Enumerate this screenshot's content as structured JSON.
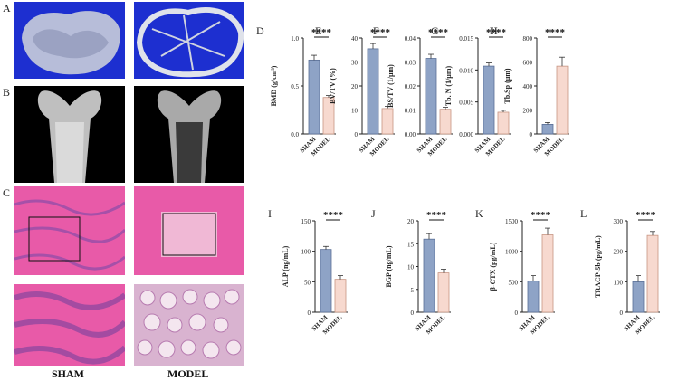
{
  "left_panels": {
    "a": "A",
    "b": "B",
    "c": "C"
  },
  "group_labels": {
    "sham": "SHAM",
    "model": "MODEL"
  },
  "colors": {
    "sham_bar": "#8ea3c6",
    "model_bar": "#f7d9cf",
    "sham_edge": "#5a6f96",
    "model_edge": "#c79583"
  },
  "chart_data": [
    {
      "panel": "D",
      "type": "bar",
      "ylabel": "BMD (g/cm³)",
      "ylim": [
        0,
        1.0
      ],
      "ticks": [
        0.0,
        0.5,
        1.0
      ],
      "tick_labels": [
        "0.0",
        "0.5",
        "1.0"
      ],
      "categories": [
        "SHAM",
        "MODEL"
      ],
      "values": [
        0.77,
        0.38
      ],
      "errors": [
        0.05,
        0.02
      ],
      "sig": "****"
    },
    {
      "panel": "E",
      "type": "bar",
      "ylabel": "BV/TV (%)",
      "ylim": [
        0,
        40
      ],
      "ticks": [
        0,
        10,
        20,
        30,
        40
      ],
      "tick_labels": [
        "0",
        "10",
        "20",
        "30",
        "40"
      ],
      "categories": [
        "SHAM",
        "MODEL"
      ],
      "values": [
        35.5,
        10.6
      ],
      "errors": [
        2.2,
        0.9
      ],
      "sig": "****"
    },
    {
      "panel": "F",
      "type": "bar",
      "ylabel": "BS/TV (1/μm)",
      "ylim": [
        0,
        0.04
      ],
      "ticks": [
        0,
        0.01,
        0.02,
        0.03,
        0.04
      ],
      "tick_labels": [
        "0.00",
        "0.01",
        "0.02",
        "0.03",
        "0.04"
      ],
      "categories": [
        "SHAM",
        "MODEL"
      ],
      "values": [
        0.0315,
        0.0103
      ],
      "errors": [
        0.0017,
        0.0008
      ],
      "sig": "****"
    },
    {
      "panel": "G",
      "type": "bar",
      "ylabel": "Tb. N (1/μm)",
      "ylim": [
        0,
        0.015
      ],
      "ticks": [
        0,
        0.005,
        0.01,
        0.015
      ],
      "tick_labels": [
        "0.000",
        "0.005",
        "0.010",
        "0.015"
      ],
      "categories": [
        "SHAM",
        "MODEL"
      ],
      "values": [
        0.0106,
        0.0034
      ],
      "errors": [
        0.0005,
        0.0003
      ],
      "sig": "****"
    },
    {
      "panel": "H",
      "type": "bar",
      "ylabel": "Tb.Sp (μm)",
      "ylim": [
        0,
        800
      ],
      "ticks": [
        0,
        200,
        400,
        600,
        800
      ],
      "tick_labels": [
        "0",
        "200",
        "400",
        "600",
        "800"
      ],
      "categories": [
        "SHAM",
        "MODEL"
      ],
      "values": [
        80,
        565
      ],
      "errors": [
        15,
        75
      ],
      "sig": "****"
    },
    {
      "panel": "I",
      "type": "bar",
      "ylabel": "ALP (ng/mL)",
      "ylim": [
        0,
        150
      ],
      "ticks": [
        0,
        50,
        100,
        150
      ],
      "tick_labels": [
        "0",
        "50",
        "100",
        "150"
      ],
      "categories": [
        "SHAM",
        "MODEL"
      ],
      "values": [
        103,
        54
      ],
      "errors": [
        5,
        6
      ],
      "sig": "****"
    },
    {
      "panel": "J",
      "type": "bar",
      "ylabel": "BGP (ng/mL)",
      "ylim": [
        0,
        20
      ],
      "ticks": [
        0,
        5,
        10,
        15,
        20
      ],
      "tick_labels": [
        "0",
        "5",
        "10",
        "15",
        "20"
      ],
      "categories": [
        "SHAM",
        "MODEL"
      ],
      "values": [
        16,
        8.6
      ],
      "errors": [
        1.2,
        0.8
      ],
      "sig": "****"
    },
    {
      "panel": "K",
      "type": "bar",
      "ylabel": "β-CTX (pg/mL)",
      "ylim": [
        0,
        1500
      ],
      "ticks": [
        0,
        500,
        1000,
        1500
      ],
      "tick_labels": [
        "0",
        "500",
        "1000",
        "1500"
      ],
      "categories": [
        "SHAM",
        "MODEL"
      ],
      "values": [
        510,
        1270
      ],
      "errors": [
        90,
        110
      ],
      "sig": "****"
    },
    {
      "panel": "L",
      "type": "bar",
      "ylabel": "TRACP-5b (pg/mL)",
      "ylim": [
        0,
        300
      ],
      "ticks": [
        0,
        100,
        200,
        300
      ],
      "tick_labels": [
        "0",
        "100",
        "200",
        "300"
      ],
      "categories": [
        "SHAM",
        "MODEL"
      ],
      "values": [
        100,
        252
      ],
      "errors": [
        20,
        13
      ],
      "sig": "****"
    }
  ]
}
